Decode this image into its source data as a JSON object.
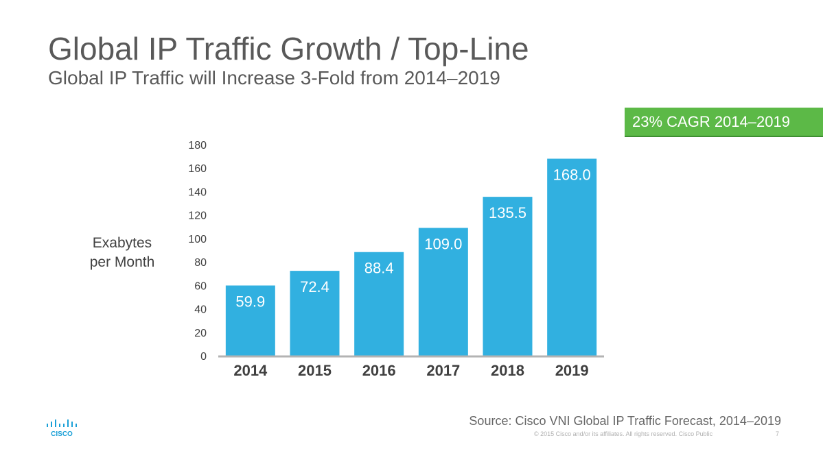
{
  "slide": {
    "title": "Global IP Traffic Growth / Top-Line",
    "subtitle": "Global IP Traffic will Increase 3-Fold from 2014–2019",
    "cagr_badge": "23% CAGR 2014–2019",
    "source": "Source: Cisco VNI Global IP Traffic Forecast, 2014–2019",
    "copyright": "© 2015  Cisco and/or its affiliates. All rights reserved.   Cisco Public",
    "page_number": "7",
    "logo_text": "CISCO"
  },
  "colors": {
    "bar": "#31b0e0",
    "badge": "#5cb947",
    "text": "#595959",
    "axis": "#b3b3b3"
  },
  "chart_data": {
    "type": "bar",
    "title": "",
    "xlabel": "",
    "ylabel": "Exabytes per Month",
    "ylabel_lines": [
      "Exabytes",
      "per Month"
    ],
    "categories": [
      "2014",
      "2015",
      "2016",
      "2017",
      "2018",
      "2019"
    ],
    "values": [
      59.9,
      72.4,
      88.4,
      109.0,
      135.5,
      168.0
    ],
    "value_labels": [
      "59.9",
      "72.4",
      "88.4",
      "109.0",
      "135.5",
      "168.0"
    ],
    "yticks": [
      0,
      20,
      40,
      60,
      80,
      100,
      120,
      140,
      160,
      180
    ],
    "ylim": [
      0,
      180
    ],
    "grid": false,
    "legend": "none"
  }
}
